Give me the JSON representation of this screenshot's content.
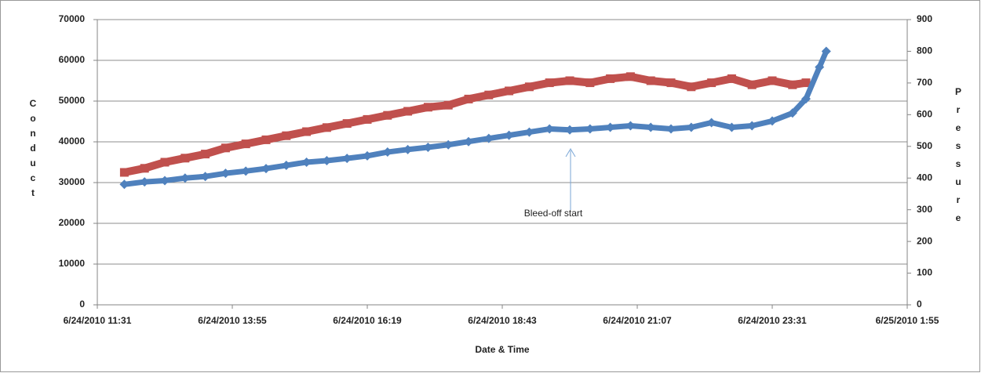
{
  "chart_data": {
    "type": "scatter",
    "x_title": "Date & Time",
    "y_title": "Conduct",
    "y2_title": "Pressure",
    "annotation": "Bleed-off start",
    "xlim": [
      40353.48,
      40354.08
    ],
    "xticks": [
      {
        "value": 40353.48,
        "label": "6/24/2010 11:31"
      },
      {
        "value": 40353.58,
        "label": "6/24/2010 13:55"
      },
      {
        "value": 40353.68,
        "label": "6/24/2010 16:19"
      },
      {
        "value": 40353.78,
        "label": "6/24/2010 18:43"
      },
      {
        "value": 40353.88,
        "label": "6/24/2010 21:07"
      },
      {
        "value": 40353.98,
        "label": "6/24/2010 23:31"
      },
      {
        "value": 40354.08,
        "label": "6/25/2010 1:55"
      }
    ],
    "ylim": [
      0,
      70000
    ],
    "yticks": [
      0,
      10000,
      20000,
      30000,
      40000,
      50000,
      60000,
      70000
    ],
    "y2lim": [
      0,
      900
    ],
    "y2ticks": [
      0,
      100,
      200,
      300,
      400,
      500,
      600,
      700,
      800,
      900
    ],
    "grid": true,
    "series": [
      {
        "color": "#c0504d",
        "marker": "square",
        "axis": "y",
        "x": [
          40353.5,
          40353.515,
          40353.53,
          40353.545,
          40353.56,
          40353.575,
          40353.59,
          40353.605,
          40353.62,
          40353.635,
          40353.65,
          40353.665,
          40353.68,
          40353.695,
          40353.71,
          40353.725,
          40353.74,
          40353.755,
          40353.77,
          40353.785,
          40353.8,
          40353.815,
          40353.83,
          40353.845,
          40353.86,
          40353.875,
          40353.89,
          40353.905,
          40353.92,
          40353.935,
          40353.95,
          40353.965,
          40353.98,
          40353.995,
          40354.005
        ],
        "values": [
          32500,
          33500,
          35000,
          36000,
          37000,
          38500,
          39500,
          40500,
          41500,
          42500,
          43500,
          44500,
          45500,
          46500,
          47500,
          48500,
          49000,
          50500,
          51500,
          52500,
          53500,
          54500,
          55000,
          54500,
          55500,
          56000,
          55000,
          54500,
          53500,
          54500,
          55500,
          54000,
          55000,
          54000,
          54500
        ]
      },
      {
        "color": "#4f81bd",
        "marker": "diamond",
        "axis": "y2",
        "x": [
          40353.5,
          40353.515,
          40353.53,
          40353.545,
          40353.56,
          40353.575,
          40353.59,
          40353.605,
          40353.62,
          40353.635,
          40353.65,
          40353.665,
          40353.68,
          40353.695,
          40353.71,
          40353.725,
          40353.74,
          40353.755,
          40353.77,
          40353.785,
          40353.8,
          40353.815,
          40353.83,
          40353.845,
          40353.86,
          40353.875,
          40353.89,
          40353.905,
          40353.92,
          40353.935,
          40353.95,
          40353.965,
          40353.98,
          40353.995,
          40354.005,
          40354.015,
          40354.02
        ],
        "values": [
          380,
          388,
          392,
          400,
          405,
          415,
          422,
          430,
          440,
          450,
          455,
          462,
          470,
          482,
          490,
          497,
          505,
          515,
          525,
          535,
          545,
          555,
          552,
          555,
          560,
          565,
          560,
          555,
          560,
          575,
          560,
          565,
          580,
          605,
          650,
          750,
          800
        ]
      }
    ]
  }
}
